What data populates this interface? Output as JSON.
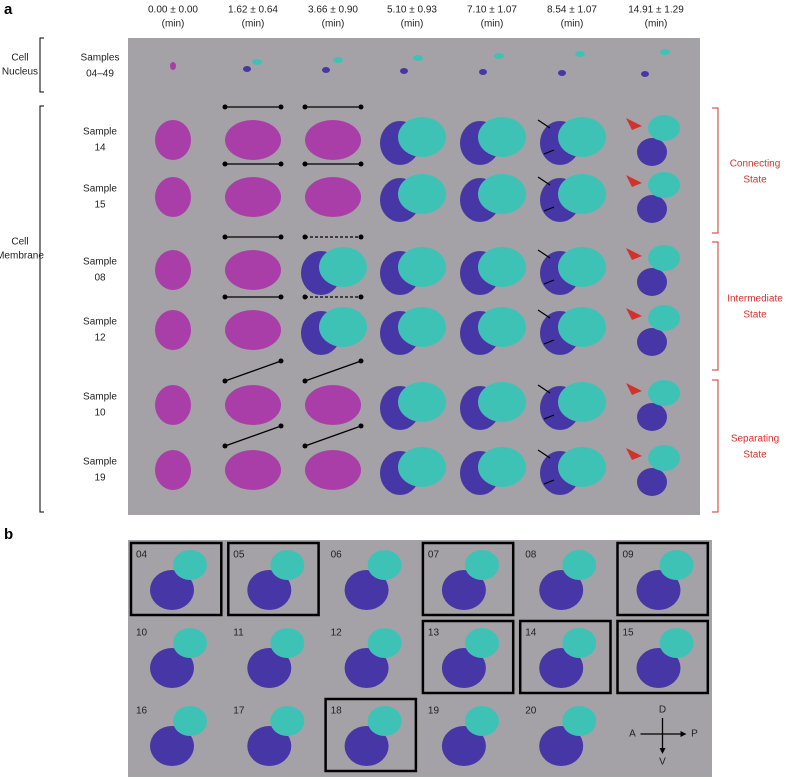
{
  "panel_a": {
    "label": "a",
    "time_headers": [
      {
        "value": "0.00 ± 0.00",
        "unit": "(min)"
      },
      {
        "value": "1.62 ± 0.64",
        "unit": "(min)"
      },
      {
        "value": "3.66 ± 0.90",
        "unit": "(min)"
      },
      {
        "value": "5.10 ± 0.93",
        "unit": "(min)"
      },
      {
        "value": "7.10 ± 1.07",
        "unit": "(min)"
      },
      {
        "value": "8.54 ± 1.07",
        "unit": "(min)"
      },
      {
        "value": "14.91 ± 1.29",
        "unit": "(min)"
      }
    ],
    "nucleus": {
      "group": [
        "Cell",
        "Nucleus"
      ],
      "row": [
        "Samples",
        "04–49"
      ]
    },
    "membrane": {
      "group": [
        "Cell",
        "Membrane"
      ],
      "rows": [
        [
          "Sample",
          "14"
        ],
        [
          "Sample",
          "15"
        ],
        [
          "Sample",
          "08"
        ],
        [
          "Sample",
          "12"
        ],
        [
          "Sample",
          "10"
        ],
        [
          "Sample",
          "19"
        ]
      ]
    },
    "states": [
      [
        "Connecting",
        "State"
      ],
      [
        "Intermediate",
        "State"
      ],
      [
        "Separating",
        "State"
      ]
    ]
  },
  "panel_b": {
    "label": "b",
    "samples": [
      {
        "number": "04",
        "boxed": true
      },
      {
        "number": "05",
        "boxed": true
      },
      {
        "number": "06",
        "boxed": false
      },
      {
        "number": "07",
        "boxed": true
      },
      {
        "number": "08",
        "boxed": false
      },
      {
        "number": "09",
        "boxed": true
      },
      {
        "number": "10",
        "boxed": false
      },
      {
        "number": "11",
        "boxed": false
      },
      {
        "number": "12",
        "boxed": false
      },
      {
        "number": "13",
        "boxed": true
      },
      {
        "number": "14",
        "boxed": true
      },
      {
        "number": "15",
        "boxed": true
      },
      {
        "number": "16",
        "boxed": false
      },
      {
        "number": "17",
        "boxed": false
      },
      {
        "number": "18",
        "boxed": true
      },
      {
        "number": "19",
        "boxed": false
      },
      {
        "number": "20",
        "boxed": false
      }
    ],
    "compass": {
      "up": "D",
      "left": "A",
      "right": "P",
      "down": "V"
    }
  }
}
